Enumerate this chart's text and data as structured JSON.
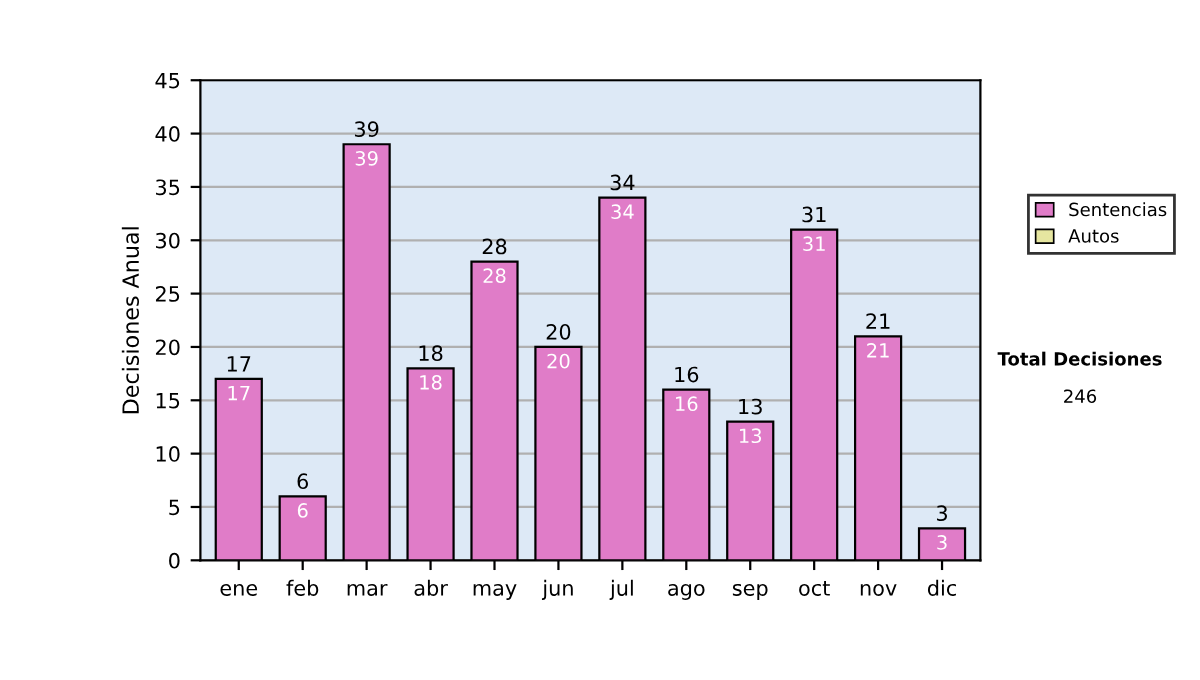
{
  "chart_data": {
    "type": "bar",
    "ylabel": "Decisiones Anual",
    "categories": [
      "ene",
      "feb",
      "mar",
      "abr",
      "may",
      "jun",
      "jul",
      "ago",
      "sep",
      "oct",
      "nov",
      "dic"
    ],
    "stacked": true,
    "series": [
      {
        "name": "Sentencias",
        "color": "#e07cc8",
        "values": [
          17,
          6,
          39,
          18,
          28,
          20,
          34,
          16,
          13,
          31,
          21,
          3
        ],
        "value_labels": [
          "17",
          "6",
          "39",
          "18",
          "28",
          "20",
          "34",
          "16",
          "13",
          "31",
          "21",
          "3"
        ]
      },
      {
        "name": "Autos",
        "color": "#e6e6a0",
        "values": [
          null,
          null,
          null,
          null,
          null,
          null,
          null,
          null,
          null,
          null,
          null,
          null
        ]
      }
    ],
    "totals": [
      "17",
      "6",
      "39",
      "18",
      "28",
      "20",
      "34",
      "16",
      "13",
      "31",
      "21",
      "3"
    ],
    "ylim": [
      0,
      45
    ],
    "yticks": [
      0,
      5,
      10,
      15,
      20,
      25,
      30,
      35,
      40,
      45
    ],
    "grid": "y",
    "legend": "right",
    "annotations": [
      "Total Decisiones",
      "246"
    ]
  }
}
